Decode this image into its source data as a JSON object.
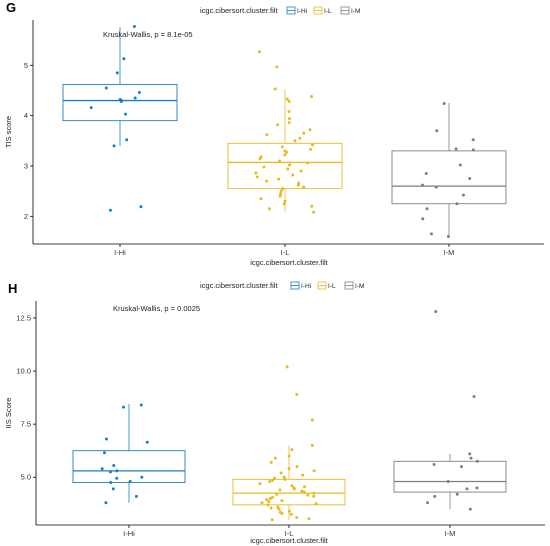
{
  "chart_data": [
    {
      "type": "box",
      "panel_label": "G",
      "legend_title": "icgc.cibersort.cluster.filt",
      "legend_position": "top",
      "annotation": "Kruskal-Wallis, p = 8.1e-05",
      "xlabel": "icgc.cibersort.cluster.filt",
      "ylabel": "TIS score",
      "categories": [
        "I-Hi",
        "I-L",
        "I-M"
      ],
      "ylim": [
        1.45,
        5.9
      ],
      "yticks": [
        "2",
        "3",
        "4",
        "5"
      ],
      "grid": false,
      "series": [
        {
          "name": "I-Hi",
          "color": "#1a7fc1",
          "box": {
            "lower_whisker": 3.4,
            "q1": 3.9,
            "median": 4.3,
            "q3": 4.62,
            "upper_whisker": 5.75
          },
          "points": [
            5.77,
            5.13,
            4.85,
            4.55,
            4.46,
            4.35,
            4.32,
            4.3,
            4.28,
            4.16,
            4.03,
            3.52,
            3.4,
            2.19,
            2.12
          ]
        },
        {
          "name": "I-L",
          "color": "#e8b923",
          "box": {
            "lower_whisker": 2.1,
            "q1": 2.55,
            "median": 3.07,
            "q3": 3.45,
            "upper_whisker": 4.52
          },
          "points": [
            5.27,
            4.97,
            4.53,
            4.38,
            4.33,
            4.28,
            4.08,
            3.94,
            3.86,
            3.82,
            3.72,
            3.65,
            3.62,
            3.55,
            3.5,
            3.42,
            3.38,
            3.33,
            3.3,
            3.27,
            3.22,
            3.18,
            3.14,
            3.1,
            3.06,
            3.02,
            2.98,
            2.94,
            2.9,
            2.86,
            2.82,
            2.78,
            2.74,
            2.7,
            2.66,
            2.62,
            2.58,
            2.55,
            2.5,
            2.45,
            2.4,
            2.35,
            2.3,
            2.25,
            2.2,
            2.15,
            2.08
          ]
        },
        {
          "name": "I-M",
          "color": "#7f7f7f",
          "box": {
            "lower_whisker": 1.6,
            "q1": 2.25,
            "median": 2.6,
            "q3": 3.3,
            "upper_whisker": 4.25
          },
          "points": [
            4.24,
            3.7,
            3.52,
            3.34,
            3.32,
            3.02,
            2.85,
            2.75,
            2.62,
            2.58,
            2.42,
            2.25,
            2.15,
            1.95,
            1.65,
            1.6
          ]
        }
      ]
    },
    {
      "type": "box",
      "panel_label": "H",
      "legend_title": "icgc.cibersort.cluster.filt",
      "legend_position": "top",
      "annotation": "Kruskal-Wallis, p = 0.0025",
      "xlabel": "icgc.cibersort.cluster.filt",
      "ylabel": "IIS Score",
      "categories": [
        "I-Hi",
        "I-L",
        "I-M"
      ],
      "ylim": [
        2.75,
        13.3
      ],
      "yticks": [
        "5.0",
        "7.5",
        "10.0",
        "12.5"
      ],
      "grid": false,
      "series": [
        {
          "name": "I-Hi",
          "color": "#1a7fc1",
          "box": {
            "lower_whisker": 3.8,
            "q1": 4.75,
            "median": 5.3,
            "q3": 6.25,
            "upper_whisker": 8.45
          },
          "points": [
            8.4,
            8.3,
            6.8,
            6.65,
            6.15,
            5.55,
            5.4,
            5.3,
            5.25,
            5.0,
            4.95,
            4.8,
            4.75,
            4.45,
            4.1,
            3.8
          ]
        },
        {
          "name": "I-L",
          "color": "#e8b923",
          "box": {
            "lower_whisker": 3.0,
            "q1": 3.7,
            "median": 4.25,
            "q3": 4.9,
            "upper_whisker": 6.5
          },
          "points": [
            10.2,
            8.9,
            7.7,
            6.5,
            6.3,
            6.0,
            5.9,
            5.7,
            5.5,
            5.4,
            5.3,
            5.2,
            5.1,
            5.0,
            4.95,
            4.9,
            4.85,
            4.8,
            4.7,
            4.6,
            4.55,
            4.5,
            4.45,
            4.4,
            4.35,
            4.3,
            4.25,
            4.2,
            4.15,
            4.1,
            4.05,
            4.0,
            3.95,
            3.9,
            3.85,
            3.8,
            3.75,
            3.7,
            3.6,
            3.55,
            3.5,
            3.4,
            3.35,
            3.3,
            3.25,
            3.1,
            3.05,
            3.0
          ]
        },
        {
          "name": "I-M",
          "color": "#7f7f7f",
          "box": {
            "lower_whisker": 3.5,
            "q1": 4.3,
            "median": 4.8,
            "q3": 5.75,
            "upper_whisker": 6.1
          },
          "points": [
            12.8,
            8.8,
            6.1,
            5.9,
            5.75,
            5.6,
            5.5,
            4.8,
            4.5,
            4.45,
            4.2,
            4.1,
            3.8,
            3.5
          ]
        }
      ]
    }
  ]
}
